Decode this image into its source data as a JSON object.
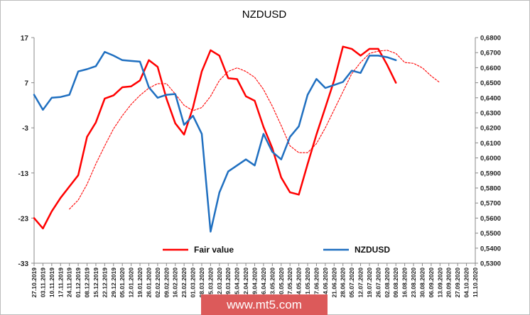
{
  "watermark": "www.mt5.com",
  "chart_data": {
    "type": "line",
    "title": "NZDUSD",
    "legend_position": "bottom-center",
    "grid": false,
    "left_axis": {
      "min": -33,
      "max": 17,
      "ticks": [
        17,
        7,
        -3,
        -13,
        -23,
        -33
      ]
    },
    "right_axis": {
      "min": 0.53,
      "max": 0.68,
      "ticks": [
        "0,6800",
        "0,6700",
        "0,6600",
        "0,6500",
        "0,6400",
        "0,6300",
        "0,6200",
        "0,6100",
        "0,6000",
        "0,5900",
        "0,5800",
        "0,5700",
        "0,5600",
        "0,5500",
        "0,5400",
        "0,5300"
      ]
    },
    "categories": [
      "27.10.2019",
      "03.11.2019",
      "10.11.2019",
      "17.11.2019",
      "24.11.2019",
      "01.12.2019",
      "08.12.2019",
      "15.12.2019",
      "22.12.2019",
      "29.12.2019",
      "05.01.2020",
      "12.01.2020",
      "19.01.2020",
      "26.01.2020",
      "02.02.2020",
      "09.02.2020",
      "16.02.2020",
      "23.02.2020",
      "01.03.2020",
      "08.03.2020",
      "15.03.2020",
      "22.03.2020",
      "29.03.2020",
      "05.04.2020",
      "12.04.2020",
      "19.04.2020",
      "26.04.2020",
      "03.05.2020",
      "10.05.2020",
      "17.05.2020",
      "24.05.2020",
      "31.05.2020",
      "07.06.2020",
      "14.06.2020",
      "21.06.2020",
      "28.06.2020",
      "05.07.2020",
      "12.07.2020",
      "19.07.2020",
      "26.07.2020",
      "02.08.2020",
      "09.08.2020",
      "16.08.2020",
      "23.08.2020",
      "30.08.2020",
      "06.09.2020",
      "13.09.2020",
      "20.09.2020",
      "27.09.2020",
      "04.10.2020",
      "11.10.2020"
    ],
    "series": [
      {
        "name": "Fair value",
        "axis": "left",
        "color": "#ff0000",
        "style": "solid",
        "values": [
          -23.0,
          -25.3,
          -21.5,
          -18.5,
          -16.0,
          -13.5,
          -5.0,
          -1.8,
          3.5,
          4.2,
          6.0,
          6.2,
          7.5,
          12.0,
          10.5,
          3.5,
          -2.0,
          -4.5,
          1.5,
          9.5,
          14.2,
          13.0,
          8.0,
          7.8,
          4.0,
          3.0,
          -2.8,
          -7.5,
          -14.0,
          -17.3,
          -17.8,
          -11.0,
          -4.5,
          1.5,
          7.5,
          15.0,
          14.5,
          13.0,
          14.5,
          14.5,
          11.0,
          7.0,
          null,
          null,
          null,
          null,
          null,
          null,
          null,
          null,
          null
        ]
      },
      {
        "name": "",
        "axis": "left",
        "color": "#ff0000",
        "style": "dotted",
        "values": [
          null,
          null,
          null,
          null,
          -21.0,
          -19.0,
          -15.5,
          -11.0,
          -7.0,
          -3.2,
          -0.3,
          2.2,
          4.2,
          5.8,
          6.8,
          6.8,
          4.5,
          2.0,
          0.8,
          1.5,
          4.0,
          7.5,
          9.5,
          10.3,
          9.5,
          8.2,
          5.5,
          1.8,
          -2.5,
          -7.0,
          -8.5,
          -8.5,
          -6.5,
          -3.0,
          1.0,
          5.0,
          9.0,
          11.5,
          13.5,
          14.0,
          14.2,
          13.5,
          11.5,
          11.3,
          10.3,
          8.5,
          7.0,
          null,
          null,
          null,
          null
        ]
      },
      {
        "name": "NZDUSD",
        "axis": "right",
        "color": "#1f6fc0",
        "style": "solid",
        "values": [
          0.642,
          0.632,
          0.64,
          0.6405,
          0.642,
          0.6575,
          0.659,
          0.661,
          0.6705,
          0.668,
          0.665,
          0.6645,
          0.664,
          0.647,
          0.64,
          0.642,
          0.6425,
          0.622,
          0.628,
          0.616,
          0.551,
          0.577,
          0.591,
          0.595,
          0.599,
          0.595,
          0.616,
          0.604,
          0.599,
          0.614,
          0.621,
          0.642,
          0.6525,
          0.6465,
          0.6485,
          0.6505,
          0.658,
          0.6565,
          0.668,
          0.668,
          0.667,
          0.665,
          null,
          null,
          null,
          null,
          null,
          null,
          null,
          null,
          null
        ]
      }
    ]
  }
}
